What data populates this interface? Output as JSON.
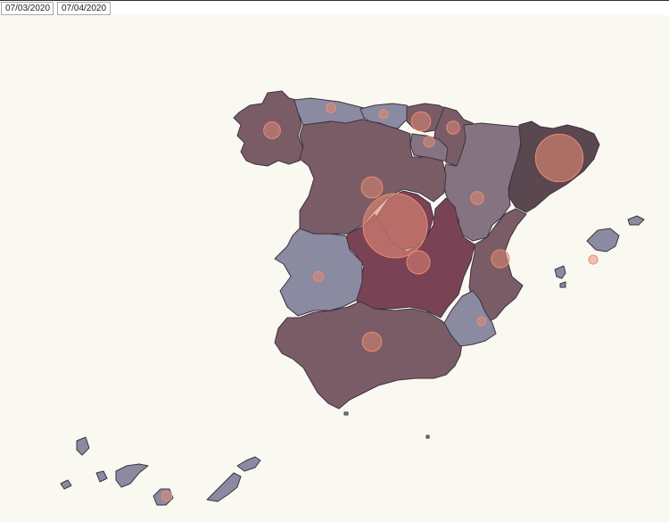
{
  "toolbar": {
    "dates": [
      "07/03/2020",
      "07/04/2020"
    ]
  },
  "colors": {
    "background": "#faf9f1",
    "region_low": "#8a8aa0",
    "region_mid_low": "#857382",
    "region_mid": "#7a5c67",
    "region_high": "#7a4255",
    "region_top": "#5a4750",
    "bubble_fill": "#e38a74",
    "bubble_stroke": "#f08a6e"
  },
  "regions": [
    {
      "name": "Galicia",
      "level": "mid"
    },
    {
      "name": "Asturias",
      "level": "low"
    },
    {
      "name": "Cantabria",
      "level": "low"
    },
    {
      "name": "País Vasco",
      "level": "mid"
    },
    {
      "name": "Navarra",
      "level": "mid"
    },
    {
      "name": "La Rioja",
      "level": "mid_low"
    },
    {
      "name": "Aragón",
      "level": "mid_low"
    },
    {
      "name": "Cataluña",
      "level": "top"
    },
    {
      "name": "Castilla y León",
      "level": "mid"
    },
    {
      "name": "Madrid",
      "level": "high"
    },
    {
      "name": "Castilla-La Mancha",
      "level": "high"
    },
    {
      "name": "Comunidad Valenciana",
      "level": "mid"
    },
    {
      "name": "Extremadura",
      "level": "low"
    },
    {
      "name": "Andalucía",
      "level": "mid"
    },
    {
      "name": "Murcia",
      "level": "low"
    },
    {
      "name": "Islas Baleares",
      "level": "low"
    },
    {
      "name": "Canarias",
      "level": "low"
    },
    {
      "name": "Ceuta",
      "level": "low"
    },
    {
      "name": "Melilla",
      "level": "low"
    }
  ],
  "bubbles": [
    {
      "region": "Madrid",
      "size": 1.0
    },
    {
      "region": "Cataluña",
      "size": 0.74
    },
    {
      "region": "Castilla-La Mancha",
      "size": 0.36
    },
    {
      "region": "Castilla y León",
      "size": 0.33
    },
    {
      "region": "País Vasco",
      "size": 0.3
    },
    {
      "region": "Galicia",
      "size": 0.26
    },
    {
      "region": "Andalucía",
      "size": 0.3
    },
    {
      "region": "Comunidad Valenciana",
      "size": 0.28
    },
    {
      "region": "Navarra",
      "size": 0.2
    },
    {
      "region": "Aragón",
      "size": 0.2
    },
    {
      "region": "La Rioja",
      "size": 0.17
    },
    {
      "region": "Asturias",
      "size": 0.15
    },
    {
      "region": "Cantabria",
      "size": 0.14
    },
    {
      "region": "Extremadura",
      "size": 0.16
    },
    {
      "region": "Murcia",
      "size": 0.14
    },
    {
      "region": "Islas Baleares",
      "size": 0.14
    },
    {
      "region": "Canarias",
      "size": 0.16
    }
  ]
}
